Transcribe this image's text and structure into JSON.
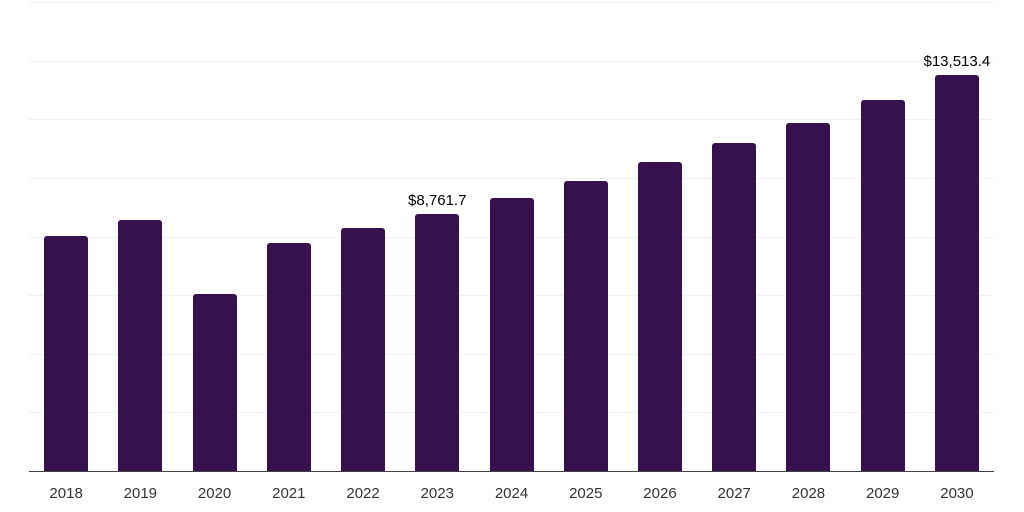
{
  "chart_data": {
    "type": "bar",
    "categories": [
      "2018",
      "2019",
      "2020",
      "2021",
      "2022",
      "2023",
      "2024",
      "2025",
      "2026",
      "2027",
      "2028",
      "2029",
      "2030"
    ],
    "values": [
      8030,
      8580,
      6030,
      7780,
      8290,
      8761.7,
      9310,
      9880,
      10545,
      11200,
      11880,
      12660,
      13513.4
    ],
    "data_labels": [
      null,
      null,
      null,
      null,
      null,
      "$8,761.7",
      null,
      null,
      null,
      null,
      null,
      null,
      "$13,513.4"
    ],
    "title": "",
    "xlabel": "",
    "ylabel": "",
    "ylim": [
      0,
      16000
    ],
    "ytick_step": 2000,
    "yticks_visible": false,
    "grid": true,
    "legend": false,
    "note": "Only 2023 and 2030 carry printed data labels; other values estimated from gridlines (grid step = 2000)."
  },
  "style": {
    "bar_color": "#36114D",
    "gridline_color": "#f0f0f0",
    "axis_line_color": "#414141",
    "tick_label_color": "#333333",
    "data_label_color": "#000000",
    "background_color": "#ffffff"
  }
}
